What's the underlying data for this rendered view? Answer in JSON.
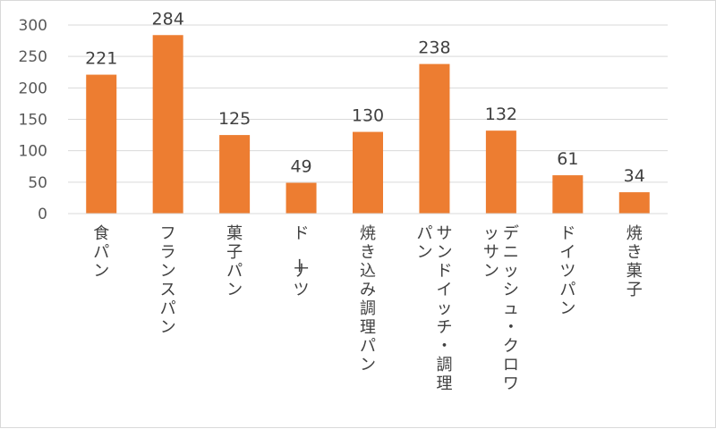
{
  "chart_data": {
    "type": "bar",
    "categories": [
      "食パン",
      "フランスパン",
      "菓子パン",
      "ドーナツ",
      "焼き込み調理パン",
      "サンドイッチ・調理パン",
      "デニッシュ・クロワッサン",
      "ドイツパン",
      "焼き菓子"
    ],
    "values": [
      221,
      284,
      125,
      49,
      130,
      238,
      132,
      61,
      34
    ],
    "ylim": [
      0,
      300
    ],
    "yticks": [
      0,
      50,
      100,
      150,
      200,
      250,
      300
    ],
    "grid": true,
    "legend": "none",
    "bar_color": "#ed7d31",
    "grid_color": "#d9d9d9"
  }
}
